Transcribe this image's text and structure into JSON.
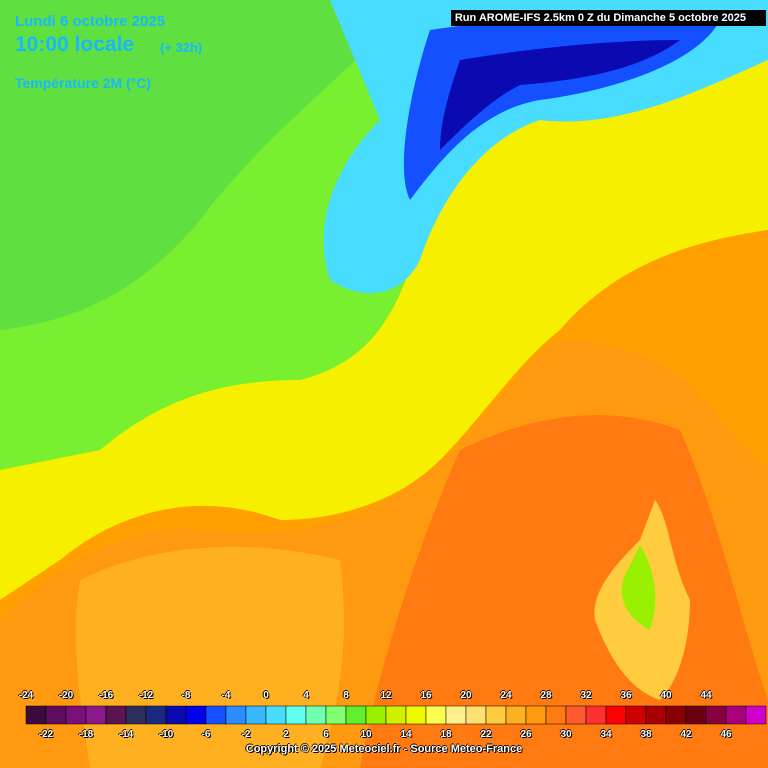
{
  "header": {
    "date": "Lundi 6 octobre 2025",
    "time": "10:00 locale",
    "lead": "(+ 32h)",
    "parameter": "Température 2M (°C)"
  },
  "run": "Run AROME-IFS 2.5km 0 Z du Dimanche 5 octobre 2025",
  "copyright": "Copyright © 2025 Meteociel.fr - Source Meteo-France",
  "colorbar": {
    "labels": [
      -24,
      -22,
      -20,
      -18,
      -16,
      -14,
      -12,
      -10,
      -8,
      -6,
      -4,
      -2,
      0,
      2,
      4,
      6,
      8,
      10,
      12,
      14,
      16,
      18,
      20,
      22,
      24,
      26,
      28,
      30,
      32,
      34,
      36,
      38,
      40,
      42,
      44,
      46
    ],
    "colors": [
      "#3c0a3c",
      "#5e0d5e",
      "#7a0f7a",
      "#8a1a8a",
      "#5a1450",
      "#2e2e5e",
      "#1a2a80",
      "#0a0ab0",
      "#0000e8",
      "#1450ff",
      "#2a8cff",
      "#3ab8ff",
      "#48dcff",
      "#60fff0",
      "#70ffb0",
      "#80ff70",
      "#60f030",
      "#98f000",
      "#d0f000",
      "#f0f800",
      "#ffff50",
      "#fff08a",
      "#ffe070",
      "#ffcc40",
      "#ffb020",
      "#ff9a10",
      "#ff7a10",
      "#ff5a30",
      "#ff3030",
      "#ff0000",
      "#d00000",
      "#a80000",
      "#880000",
      "#6a0010",
      "#880040",
      "#a8007a",
      "#d000c8",
      "#ff10ff",
      "#ff60ff",
      "#ff90ff"
    ]
  }
}
